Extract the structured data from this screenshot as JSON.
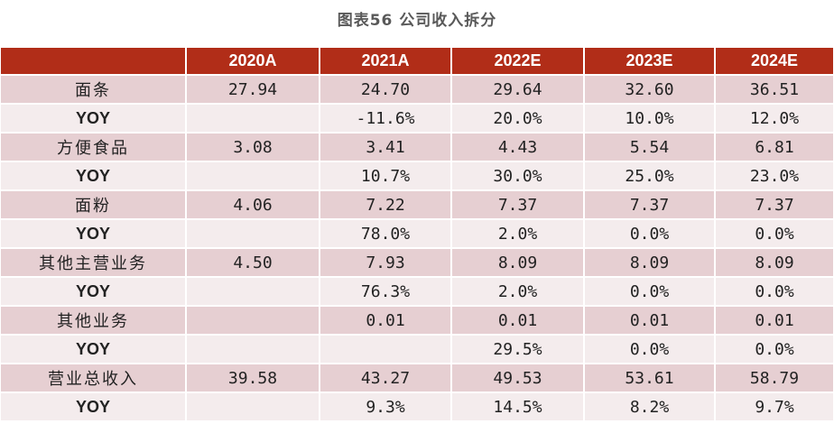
{
  "title": "图表56 公司收入拆分",
  "header": [
    "",
    "2020A",
    "2021A",
    "2022E",
    "2023E",
    "2024E"
  ],
  "rows": [
    {
      "label": "面条",
      "type": "main",
      "values": [
        "27.94",
        "24.70",
        "29.64",
        "32.60",
        "36.51"
      ]
    },
    {
      "label": "YOY",
      "type": "yoy",
      "values": [
        "",
        "-11.6%",
        "20.0%",
        "10.0%",
        "12.0%"
      ]
    },
    {
      "label": "方便食品",
      "type": "main",
      "values": [
        "3.08",
        "3.41",
        "4.43",
        "5.54",
        "6.81"
      ]
    },
    {
      "label": "YOY",
      "type": "yoy",
      "values": [
        "",
        "10.7%",
        "30.0%",
        "25.0%",
        "23.0%"
      ]
    },
    {
      "label": "面粉",
      "type": "main",
      "values": [
        "4.06",
        "7.22",
        "7.37",
        "7.37",
        "7.37"
      ]
    },
    {
      "label": "YOY",
      "type": "yoy",
      "values": [
        "",
        "78.0%",
        "2.0%",
        "0.0%",
        "0.0%"
      ]
    },
    {
      "label": "其他主营业务",
      "type": "main",
      "values": [
        "4.50",
        "7.93",
        "8.09",
        "8.09",
        "8.09"
      ]
    },
    {
      "label": "YOY",
      "type": "yoy",
      "values": [
        "",
        "76.3%",
        "2.0%",
        "0.0%",
        "0.0%"
      ]
    },
    {
      "label": "其他业务",
      "type": "main",
      "values": [
        "",
        "0.01",
        "0.01",
        "0.01",
        "0.01"
      ]
    },
    {
      "label": "YOY",
      "type": "yoy",
      "values": [
        "",
        "",
        "29.5%",
        "0.0%",
        "0.0%"
      ]
    },
    {
      "label": "营业总收入",
      "type": "main",
      "values": [
        "39.58",
        "43.27",
        "49.53",
        "53.61",
        "58.79"
      ]
    },
    {
      "label": "YOY",
      "type": "yoy",
      "values": [
        "",
        "9.3%",
        "14.5%",
        "8.2%",
        "9.7%"
      ]
    }
  ]
}
